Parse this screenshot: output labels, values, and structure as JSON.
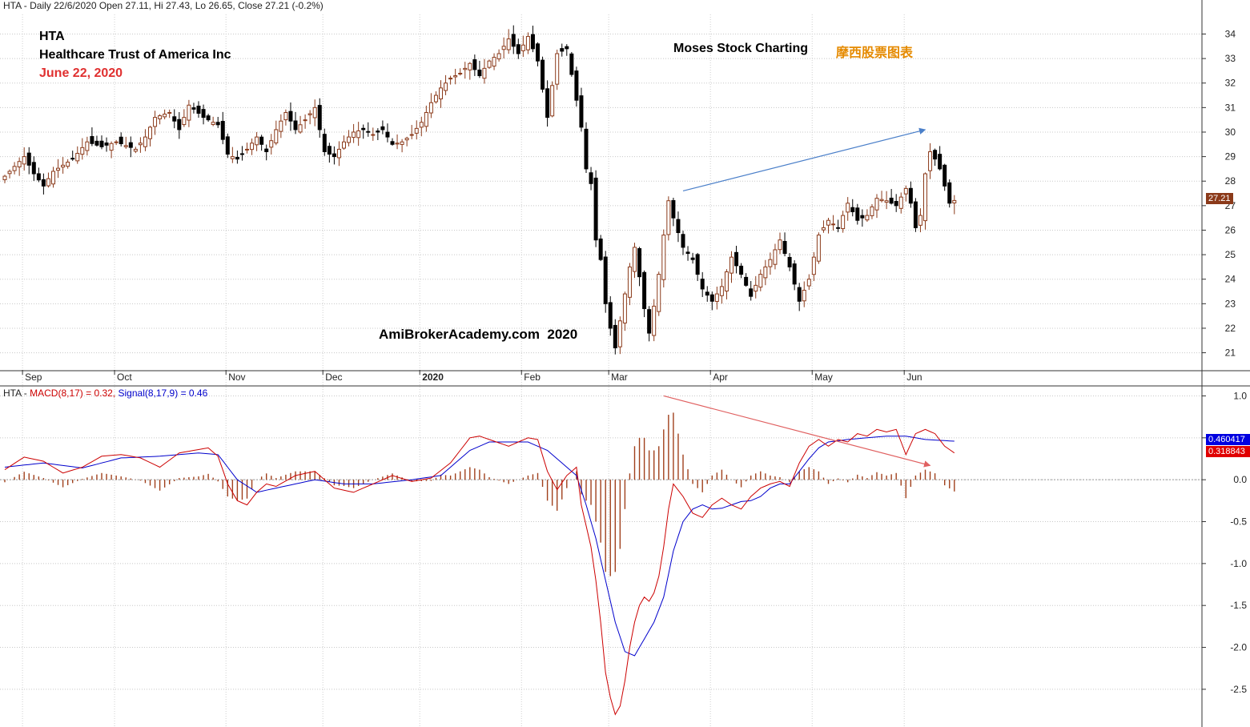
{
  "header": {
    "price_info": "HTA - Daily 22/6/2020 Open 27.11, Hi 27.43, Lo 26.65, Close 27.21 (-0.2%)",
    "macd_prefix": "HTA - ",
    "macd_label": "MACD(8,17) = 0.32,",
    "signal_label": "Signal(8,17,9) = 0.46"
  },
  "annotations": {
    "ticker": "HTA",
    "company": "Healthcare Trust of America Inc",
    "date": "June 22, 2020",
    "brand_en": "Moses Stock Charting",
    "brand_cn": "摩西股票图表",
    "watermark": "AmiBrokerAcademy.com  2020"
  },
  "tags": {
    "last_price": "27.21",
    "signal_value": "0.460417",
    "macd_value": "0.318843"
  },
  "colors": {
    "up_candle": "#8b3a1a",
    "down_candle": "#000000",
    "macd_line": "#cc0000",
    "signal_line": "#0000cc",
    "histogram": "#a0401c",
    "trend_up": "#4a7fc9",
    "trend_down": "#e06060",
    "date_text": "#e03030",
    "brand_cn_text": "#e58a00"
  },
  "chart_data": [
    {
      "type": "candlestick",
      "x_labels": [
        "Sep",
        "Oct",
        "Nov",
        "Dec",
        "2020",
        "Feb",
        "Mar",
        "Apr",
        "May",
        "Jun"
      ],
      "y_ticks": [
        21,
        22,
        23,
        24,
        25,
        26,
        27,
        28,
        29,
        30,
        31,
        32,
        33,
        34
      ],
      "ylim": [
        20.3,
        34.8
      ],
      "close_path": [
        [
          0,
          28.2
        ],
        [
          4,
          29.0
        ],
        [
          6,
          28.3
        ],
        [
          8,
          27.8
        ],
        [
          10,
          28.4
        ],
        [
          14,
          28.9
        ],
        [
          17,
          29.6
        ],
        [
          20,
          29.4
        ],
        [
          23,
          29.6
        ],
        [
          27,
          29.3
        ],
        [
          29,
          29.8
        ],
        [
          31,
          30.6
        ],
        [
          34,
          30.8
        ],
        [
          36,
          30.1
        ],
        [
          38,
          31.1
        ],
        [
          41,
          30.6
        ],
        [
          44,
          30.3
        ],
        [
          46,
          29.1
        ],
        [
          48,
          28.9
        ],
        [
          50,
          29.3
        ],
        [
          52,
          29.8
        ],
        [
          54,
          29.2
        ],
        [
          56,
          30.1
        ],
        [
          58,
          30.8
        ],
        [
          60,
          30.1
        ],
        [
          62,
          30.5
        ],
        [
          64,
          31.0
        ],
        [
          66,
          29.2
        ],
        [
          68,
          29.0
        ],
        [
          70,
          29.6
        ],
        [
          72,
          30.0
        ],
        [
          74,
          30.1
        ],
        [
          76,
          29.9
        ],
        [
          78,
          30.1
        ],
        [
          80,
          29.5
        ],
        [
          82,
          29.6
        ],
        [
          84,
          29.9
        ],
        [
          86,
          30.4
        ],
        [
          88,
          31.2
        ],
        [
          90,
          31.8
        ],
        [
          92,
          32.2
        ],
        [
          94,
          32.4
        ],
        [
          96,
          32.8
        ],
        [
          98,
          32.3
        ],
        [
          100,
          32.9
        ],
        [
          102,
          33.2
        ],
        [
          104,
          33.8
        ],
        [
          106,
          33.2
        ],
        [
          108,
          33.9
        ],
        [
          110,
          32.9
        ],
        [
          112,
          30.6
        ],
        [
          114,
          33.2
        ],
        [
          116,
          33.4
        ],
        [
          118,
          31.3
        ],
        [
          119,
          30.2
        ],
        [
          120,
          28.5
        ],
        [
          121,
          27.9
        ],
        [
          122,
          25.6
        ],
        [
          123,
          24.8
        ],
        [
          124,
          23.0
        ],
        [
          125,
          22.0
        ],
        [
          126,
          21.2
        ],
        [
          127,
          22.3
        ],
        [
          128,
          23.4
        ],
        [
          129,
          24.5
        ],
        [
          130,
          25.3
        ],
        [
          131,
          24.1
        ],
        [
          132,
          22.8
        ],
        [
          133,
          21.8
        ],
        [
          134,
          22.9
        ],
        [
          135,
          24.2
        ],
        [
          136,
          25.8
        ],
        [
          137,
          27.2
        ],
        [
          138,
          26.5
        ],
        [
          140,
          25.3
        ],
        [
          142,
          24.8
        ],
        [
          144,
          23.6
        ],
        [
          146,
          23.1
        ],
        [
          148,
          23.7
        ],
        [
          150,
          24.9
        ],
        [
          152,
          24.2
        ],
        [
          154,
          23.3
        ],
        [
          156,
          24.2
        ],
        [
          158,
          24.8
        ],
        [
          160,
          25.6
        ],
        [
          162,
          24.5
        ],
        [
          164,
          23.1
        ],
        [
          166,
          24.0
        ],
        [
          168,
          25.8
        ],
        [
          170,
          26.4
        ],
        [
          172,
          26.1
        ],
        [
          174,
          27.1
        ],
        [
          176,
          26.4
        ],
        [
          178,
          26.6
        ],
        [
          180,
          27.3
        ],
        [
          182,
          27.2
        ],
        [
          184,
          27.0
        ],
        [
          186,
          27.7
        ],
        [
          187,
          27.1
        ],
        [
          188,
          26.1
        ],
        [
          189,
          26.6
        ],
        [
          190,
          28.3
        ],
        [
          191,
          29.2
        ],
        [
          192,
          28.9
        ],
        [
          193,
          28.5
        ],
        [
          194,
          27.8
        ],
        [
          195,
          27.1
        ],
        [
          196,
          27.21
        ]
      ],
      "trendline": {
        "from": [
          140,
          27.6
        ],
        "to": [
          190,
          30.1
        ]
      }
    },
    {
      "type": "line",
      "y_ticks": [
        "1.0",
        "0.5",
        "0.0",
        "-0.5",
        "-1.0",
        "-1.5",
        "-2.0",
        "-2.5"
      ],
      "ylim": [
        -2.95,
        1.1
      ],
      "series": [
        {
          "name": "MACD(8,17)",
          "path": [
            [
              0,
              0.12
            ],
            [
              4,
              0.27
            ],
            [
              8,
              0.22
            ],
            [
              12,
              0.08
            ],
            [
              16,
              0.15
            ],
            [
              20,
              0.28
            ],
            [
              24,
              0.3
            ],
            [
              28,
              0.26
            ],
            [
              32,
              0.15
            ],
            [
              36,
              0.32
            ],
            [
              40,
              0.36
            ],
            [
              42,
              0.38
            ],
            [
              44,
              0.28
            ],
            [
              46,
              -0.05
            ],
            [
              48,
              -0.25
            ],
            [
              50,
              -0.3
            ],
            [
              52,
              -0.15
            ],
            [
              54,
              -0.05
            ],
            [
              56,
              -0.08
            ],
            [
              60,
              0.05
            ],
            [
              64,
              0.1
            ],
            [
              68,
              -0.1
            ],
            [
              72,
              -0.15
            ],
            [
              76,
              -0.05
            ],
            [
              80,
              0.05
            ],
            [
              84,
              -0.02
            ],
            [
              88,
              0.02
            ],
            [
              92,
              0.2
            ],
            [
              94,
              0.35
            ],
            [
              96,
              0.5
            ],
            [
              98,
              0.52
            ],
            [
              100,
              0.48
            ],
            [
              104,
              0.4
            ],
            [
              108,
              0.5
            ],
            [
              110,
              0.48
            ],
            [
              112,
              0.1
            ],
            [
              114,
              -0.12
            ],
            [
              116,
              0.05
            ],
            [
              118,
              0.15
            ],
            [
              119,
              -0.3
            ],
            [
              120,
              -0.55
            ],
            [
              121,
              -0.8
            ],
            [
              122,
              -1.2
            ],
            [
              123,
              -1.7
            ],
            [
              124,
              -2.3
            ],
            [
              125,
              -2.6
            ],
            [
              126,
              -2.8
            ],
            [
              127,
              -2.7
            ],
            [
              128,
              -2.4
            ],
            [
              129,
              -2.0
            ],
            [
              130,
              -1.7
            ],
            [
              131,
              -1.5
            ],
            [
              132,
              -1.4
            ],
            [
              133,
              -1.45
            ],
            [
              134,
              -1.35
            ],
            [
              135,
              -1.15
            ],
            [
              136,
              -0.8
            ],
            [
              137,
              -0.35
            ],
            [
              138,
              -0.05
            ],
            [
              140,
              -0.2
            ],
            [
              142,
              -0.4
            ],
            [
              144,
              -0.45
            ],
            [
              146,
              -0.3
            ],
            [
              148,
              -0.22
            ],
            [
              150,
              -0.3
            ],
            [
              152,
              -0.35
            ],
            [
              154,
              -0.2
            ],
            [
              156,
              -0.1
            ],
            [
              158,
              -0.05
            ],
            [
              160,
              -0.02
            ],
            [
              162,
              -0.08
            ],
            [
              164,
              0.2
            ],
            [
              166,
              0.4
            ],
            [
              168,
              0.48
            ],
            [
              170,
              0.4
            ],
            [
              172,
              0.48
            ],
            [
              174,
              0.45
            ],
            [
              176,
              0.55
            ],
            [
              178,
              0.52
            ],
            [
              180,
              0.6
            ],
            [
              182,
              0.57
            ],
            [
              184,
              0.6
            ],
            [
              186,
              0.3
            ],
            [
              188,
              0.55
            ],
            [
              190,
              0.6
            ],
            [
              192,
              0.55
            ],
            [
              194,
              0.4
            ],
            [
              196,
              0.32
            ]
          ]
        },
        {
          "name": "Signal(8,17,9)",
          "path": [
            [
              0,
              0.15
            ],
            [
              8,
              0.2
            ],
            [
              16,
              0.14
            ],
            [
              24,
              0.26
            ],
            [
              32,
              0.28
            ],
            [
              40,
              0.32
            ],
            [
              44,
              0.3
            ],
            [
              48,
              0.0
            ],
            [
              52,
              -0.15
            ],
            [
              56,
              -0.1
            ],
            [
              64,
              0.0
            ],
            [
              70,
              -0.05
            ],
            [
              76,
              -0.05
            ],
            [
              84,
              0.0
            ],
            [
              90,
              0.05
            ],
            [
              96,
              0.35
            ],
            [
              100,
              0.45
            ],
            [
              108,
              0.45
            ],
            [
              112,
              0.35
            ],
            [
              116,
              0.15
            ],
            [
              118,
              0.05
            ],
            [
              120,
              -0.3
            ],
            [
              122,
              -0.7
            ],
            [
              124,
              -1.2
            ],
            [
              126,
              -1.7
            ],
            [
              128,
              -2.05
            ],
            [
              130,
              -2.1
            ],
            [
              132,
              -1.9
            ],
            [
              134,
              -1.7
            ],
            [
              136,
              -1.4
            ],
            [
              138,
              -0.85
            ],
            [
              140,
              -0.5
            ],
            [
              142,
              -0.35
            ],
            [
              144,
              -0.3
            ],
            [
              146,
              -0.35
            ],
            [
              148,
              -0.34
            ],
            [
              150,
              -0.3
            ],
            [
              152,
              -0.26
            ],
            [
              154,
              -0.25
            ],
            [
              156,
              -0.2
            ],
            [
              158,
              -0.1
            ],
            [
              160,
              -0.05
            ],
            [
              162,
              -0.05
            ],
            [
              164,
              0.1
            ],
            [
              166,
              0.25
            ],
            [
              168,
              0.38
            ],
            [
              170,
              0.45
            ],
            [
              174,
              0.48
            ],
            [
              178,
              0.5
            ],
            [
              182,
              0.52
            ],
            [
              186,
              0.52
            ],
            [
              190,
              0.48
            ],
            [
              196,
              0.46
            ]
          ]
        }
      ],
      "trendline": {
        "from": [
          136,
          1.0
        ],
        "to": [
          191,
          0.17
        ]
      }
    }
  ]
}
